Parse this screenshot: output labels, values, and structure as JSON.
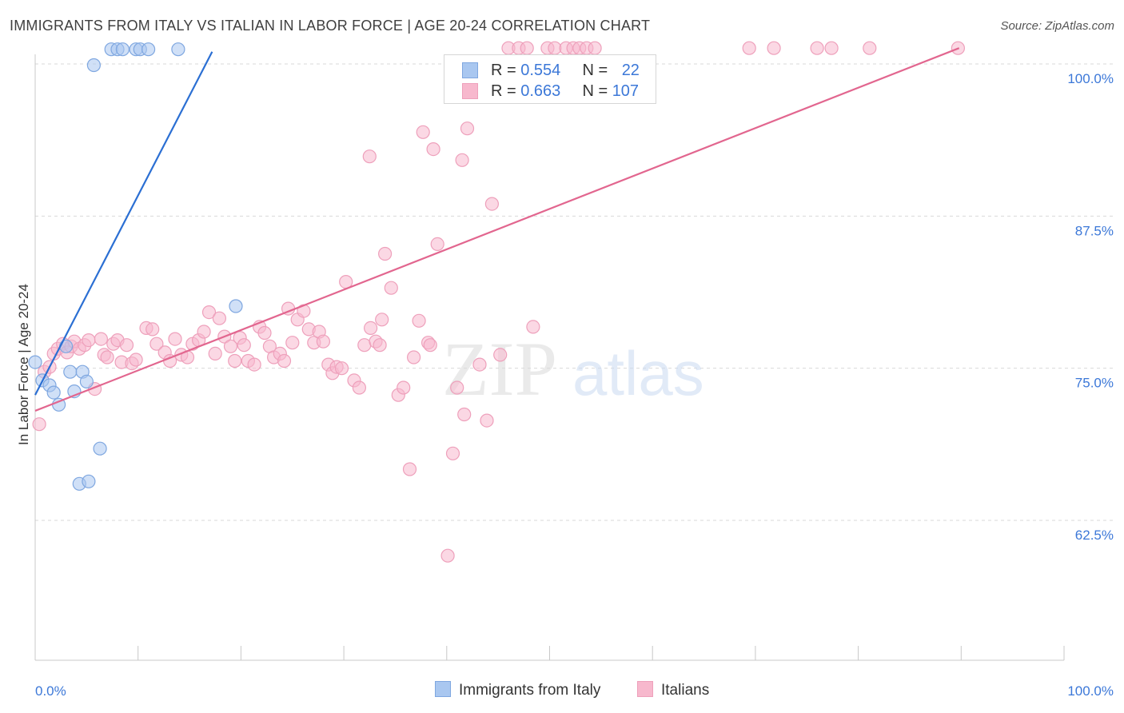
{
  "header": {
    "title": "IMMIGRANTS FROM ITALY VS ITALIAN IN LABOR FORCE | AGE 20-24 CORRELATION CHART",
    "source": "Source: ZipAtlas.com"
  },
  "colors": {
    "blue_fill": "#a9c7f0",
    "blue_stroke": "#7fa7e0",
    "blue_line": "#2b6fd3",
    "pink_fill": "#f7b8cd",
    "pink_stroke": "#eea0bb",
    "pink_line": "#e2668f",
    "tick_label": "#3c78d8",
    "grid": "#d9d9d9"
  },
  "legend": {
    "series1": {
      "r_label": "R = ",
      "r_value": "0.554",
      "n_label": "N = ",
      "n_value": "22"
    },
    "series2": {
      "r_label": "R = ",
      "r_value": "0.663",
      "n_label": "N = ",
      "n_value": "107"
    }
  },
  "watermark": {
    "zip": "ZIP",
    "atlas": "atlas"
  },
  "chart_data": {
    "type": "scatter",
    "title": "IMMIGRANTS FROM ITALY VS ITALIAN IN LABOR FORCE | AGE 20-24 CORRELATION CHART",
    "xlabel": "",
    "ylabel": "In Labor Force | Age 20-24",
    "xlim": [
      0,
      100
    ],
    "ylim": [
      52.5,
      101.5
    ],
    "x_tick_labels": [
      "0.0%",
      "100.0%"
    ],
    "y_ticks": [
      62.5,
      75.0,
      87.5,
      100.0
    ],
    "y_tick_labels": [
      "62.5%",
      "75.0%",
      "87.5%",
      "100.0%"
    ],
    "legend_position": "top-center",
    "series": [
      {
        "name": "Immigrants from Italy",
        "color": "#a9c7f0",
        "trend": {
          "x": [
            0,
            17.2
          ],
          "y": [
            72.8,
            101.0
          ]
        },
        "points": [
          [
            0,
            75.5
          ],
          [
            0.7,
            74.0
          ],
          [
            1.4,
            73.6
          ],
          [
            1.8,
            73.0
          ],
          [
            2.3,
            72.0
          ],
          [
            3.0,
            76.8
          ],
          [
            3.4,
            74.7
          ],
          [
            3.8,
            73.1
          ],
          [
            4.6,
            74.7
          ],
          [
            5.0,
            73.9
          ],
          [
            4.3,
            65.5
          ],
          [
            5.2,
            65.7
          ],
          [
            6.3,
            68.4
          ],
          [
            5.7,
            99.9
          ],
          [
            7.4,
            101.2
          ],
          [
            8.0,
            101.2
          ],
          [
            8.5,
            101.2
          ],
          [
            9.8,
            101.2
          ],
          [
            10.2,
            101.2
          ],
          [
            11.0,
            101.2
          ],
          [
            13.9,
            101.2
          ],
          [
            19.5,
            80.1
          ]
        ]
      },
      {
        "name": "Italians",
        "color": "#f7b8cd",
        "trend": {
          "x": [
            0,
            89.8
          ],
          "y": [
            71.5,
            101.3
          ]
        },
        "points": [
          [
            0.4,
            70.4
          ],
          [
            0.9,
            74.7
          ],
          [
            1.4,
            75.1
          ],
          [
            1.8,
            76.2
          ],
          [
            2.2,
            76.6
          ],
          [
            2.7,
            77.0
          ],
          [
            3.1,
            76.3
          ],
          [
            3.5,
            76.8
          ],
          [
            3.8,
            77.2
          ],
          [
            4.3,
            76.6
          ],
          [
            4.8,
            76.9
          ],
          [
            5.2,
            77.3
          ],
          [
            5.8,
            73.3
          ],
          [
            6.4,
            77.4
          ],
          [
            6.7,
            76.1
          ],
          [
            7.0,
            75.9
          ],
          [
            7.6,
            77.0
          ],
          [
            8.0,
            77.3
          ],
          [
            8.4,
            75.5
          ],
          [
            8.9,
            76.9
          ],
          [
            9.4,
            75.4
          ],
          [
            9.8,
            75.7
          ],
          [
            10.8,
            78.3
          ],
          [
            11.4,
            78.2
          ],
          [
            11.8,
            77.0
          ],
          [
            12.6,
            76.3
          ],
          [
            13.1,
            75.6
          ],
          [
            13.6,
            77.4
          ],
          [
            14.2,
            76.1
          ],
          [
            14.8,
            75.9
          ],
          [
            15.3,
            77.0
          ],
          [
            15.9,
            77.3
          ],
          [
            16.4,
            78.0
          ],
          [
            16.9,
            79.6
          ],
          [
            17.5,
            76.2
          ],
          [
            17.9,
            79.1
          ],
          [
            18.4,
            77.6
          ],
          [
            19.0,
            76.8
          ],
          [
            19.4,
            75.6
          ],
          [
            19.9,
            77.5
          ],
          [
            20.3,
            76.9
          ],
          [
            20.7,
            75.6
          ],
          [
            21.3,
            75.3
          ],
          [
            21.8,
            78.4
          ],
          [
            22.3,
            77.9
          ],
          [
            22.8,
            76.8
          ],
          [
            23.2,
            75.9
          ],
          [
            23.8,
            76.2
          ],
          [
            24.2,
            75.6
          ],
          [
            24.6,
            79.9
          ],
          [
            25.0,
            77.1
          ],
          [
            25.5,
            79.0
          ],
          [
            26.1,
            79.7
          ],
          [
            26.6,
            78.2
          ],
          [
            27.1,
            77.1
          ],
          [
            27.6,
            78.0
          ],
          [
            28.0,
            77.2
          ],
          [
            28.5,
            75.3
          ],
          [
            28.9,
            74.6
          ],
          [
            29.3,
            75.1
          ],
          [
            29.8,
            75.0
          ],
          [
            30.2,
            82.1
          ],
          [
            31.0,
            74.0
          ],
          [
            31.5,
            73.4
          ],
          [
            32.0,
            76.9
          ],
          [
            32.6,
            78.3
          ],
          [
            33.1,
            77.2
          ],
          [
            33.5,
            76.9
          ],
          [
            34.0,
            84.4
          ],
          [
            34.6,
            81.6
          ],
          [
            35.3,
            72.8
          ],
          [
            35.8,
            73.4
          ],
          [
            36.4,
            66.7
          ],
          [
            36.8,
            75.9
          ],
          [
            37.3,
            78.9
          ],
          [
            37.7,
            94.4
          ],
          [
            38.2,
            77.1
          ],
          [
            38.7,
            93.0
          ],
          [
            39.1,
            85.2
          ],
          [
            40.1,
            59.6
          ],
          [
            40.6,
            68.0
          ],
          [
            41.0,
            73.4
          ],
          [
            41.5,
            92.1
          ],
          [
            42.0,
            94.7
          ],
          [
            43.2,
            75.3
          ],
          [
            43.9,
            70.7
          ],
          [
            44.4,
            88.5
          ],
          [
            45.2,
            76.1
          ],
          [
            46.0,
            101.3
          ],
          [
            47.0,
            101.3
          ],
          [
            47.8,
            101.3
          ],
          [
            48.4,
            78.4
          ],
          [
            49.8,
            101.3
          ],
          [
            50.5,
            101.3
          ],
          [
            51.6,
            101.3
          ],
          [
            52.3,
            101.3
          ],
          [
            52.9,
            101.3
          ],
          [
            53.6,
            101.3
          ],
          [
            54.4,
            101.3
          ],
          [
            69.4,
            101.3
          ],
          [
            71.8,
            101.3
          ],
          [
            76.0,
            101.3
          ],
          [
            77.4,
            101.3
          ],
          [
            81.1,
            101.3
          ],
          [
            89.7,
            101.3
          ],
          [
            38.4,
            76.9
          ],
          [
            32.5,
            92.4
          ],
          [
            33.7,
            79.0
          ],
          [
            41.7,
            71.2
          ]
        ]
      }
    ]
  }
}
